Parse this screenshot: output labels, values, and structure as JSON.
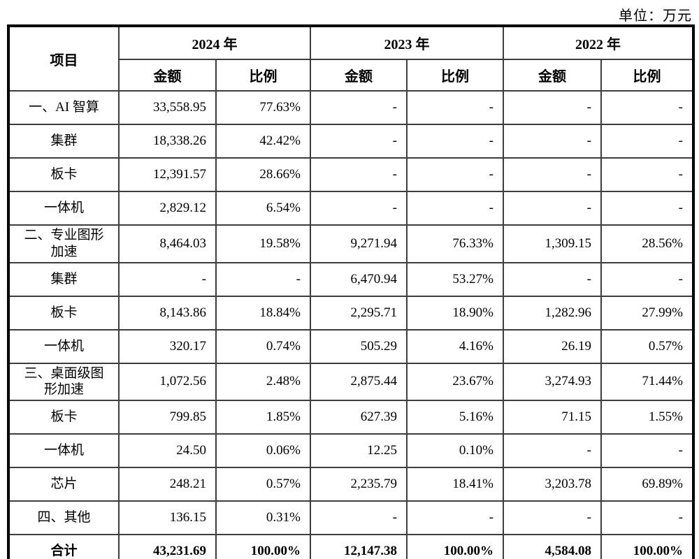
{
  "unit_label": "单位：万元",
  "table": {
    "header": {
      "item_col": "项目",
      "year_groups": [
        {
          "year": "2024 年",
          "sub": [
            "金额",
            "比例"
          ]
        },
        {
          "year": "2023 年",
          "sub": [
            "金额",
            "比例"
          ]
        },
        {
          "year": "2022 年",
          "sub": [
            "金额",
            "比例"
          ]
        }
      ]
    },
    "rows": [
      {
        "item": "一、AI 智算",
        "cells": [
          "33,558.95",
          "77.63%",
          "-",
          "-",
          "-",
          "-"
        ],
        "bold": false
      },
      {
        "item": "集群",
        "cells": [
          "18,338.26",
          "42.42%",
          "-",
          "-",
          "-",
          "-"
        ],
        "bold": false
      },
      {
        "item": "板卡",
        "cells": [
          "12,391.57",
          "28.66%",
          "-",
          "-",
          "-",
          "-"
        ],
        "bold": false
      },
      {
        "item": "一体机",
        "cells": [
          "2,829.12",
          "6.54%",
          "-",
          "-",
          "-",
          "-"
        ],
        "bold": false
      },
      {
        "item": "二、专业图形\n加速",
        "cells": [
          "8,464.03",
          "19.58%",
          "9,271.94",
          "76.33%",
          "1,309.15",
          "28.56%"
        ],
        "bold": false
      },
      {
        "item": "集群",
        "cells": [
          "-",
          "-",
          "6,470.94",
          "53.27%",
          "-",
          "-"
        ],
        "bold": false
      },
      {
        "item": "板卡",
        "cells": [
          "8,143.86",
          "18.84%",
          "2,295.71",
          "18.90%",
          "1,282.96",
          "27.99%"
        ],
        "bold": false
      },
      {
        "item": "一体机",
        "cells": [
          "320.17",
          "0.74%",
          "505.29",
          "4.16%",
          "26.19",
          "0.57%"
        ],
        "bold": false
      },
      {
        "item": "三、桌面级图\n形加速",
        "cells": [
          "1,072.56",
          "2.48%",
          "2,875.44",
          "23.67%",
          "3,274.93",
          "71.44%"
        ],
        "bold": false
      },
      {
        "item": "板卡",
        "cells": [
          "799.85",
          "1.85%",
          "627.39",
          "5.16%",
          "71.15",
          "1.55%"
        ],
        "bold": false
      },
      {
        "item": "一体机",
        "cells": [
          "24.50",
          "0.06%",
          "12.25",
          "0.10%",
          "-",
          "-"
        ],
        "bold": false
      },
      {
        "item": "芯片",
        "cells": [
          "248.21",
          "0.57%",
          "2,235.79",
          "18.41%",
          "3,203.78",
          "69.89%"
        ],
        "bold": false
      },
      {
        "item": "四、其他",
        "cells": [
          "136.15",
          "0.31%",
          "-",
          "-",
          "-",
          "-"
        ],
        "bold": false
      },
      {
        "item": "合计",
        "cells": [
          "43,231.69",
          "100.00%",
          "12,147.38",
          "100.00%",
          "4,584.08",
          "100.00%"
        ],
        "bold": true
      }
    ]
  },
  "colors": {
    "outer_border": "#000000",
    "inner_border": "#3d3d3d",
    "text": "#000000",
    "background": "#ffffff"
  }
}
